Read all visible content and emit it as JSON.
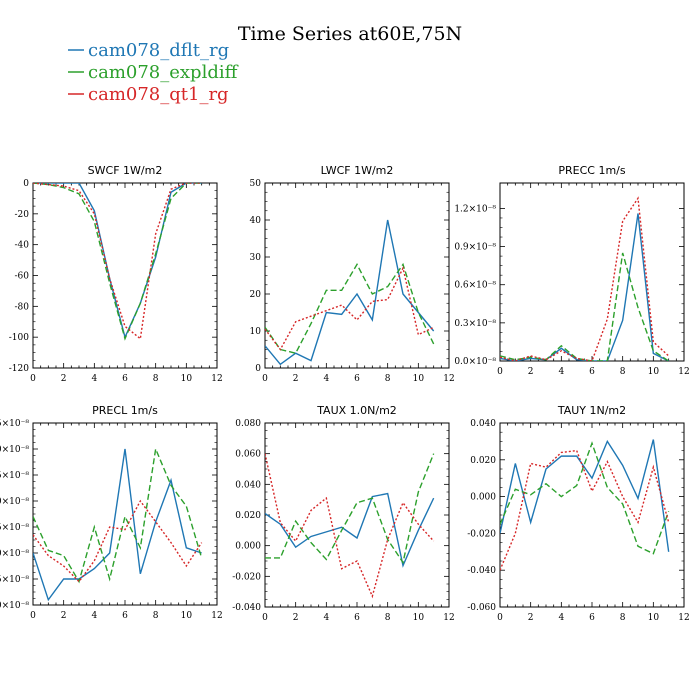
{
  "title": "Time Series at60E,75N",
  "legend": [
    {
      "name": "cam078_dflt_rg",
      "color": "#1f77b4",
      "dash": ""
    },
    {
      "name": "cam078_expldiff",
      "color": "#2ca02c",
      "dash": "6,3"
    },
    {
      "name": "cam078_qt1_rg",
      "color": "#d62728",
      "dash": "2,2"
    }
  ],
  "chart_data": [
    {
      "type": "line",
      "title": "SWCF   1W/m2",
      "xlim": [
        0,
        12
      ],
      "ylim": [
        -120,
        0
      ],
      "xticks": [
        0,
        2,
        4,
        6,
        8,
        10,
        12
      ],
      "yticks": [
        -120,
        -100,
        -80,
        -60,
        -40,
        -20,
        0
      ],
      "ytick_labels": [
        "-120",
        "-100",
        "-80",
        "-60",
        "-40",
        "-20",
        "0"
      ],
      "x": [
        0,
        1,
        2,
        3,
        4,
        5,
        6,
        7,
        8,
        9,
        10,
        11
      ],
      "series": [
        {
          "name": "cam078_dflt_rg",
          "values": [
            0,
            0,
            0,
            0,
            -18,
            -62,
            -100,
            -78,
            -48,
            -6,
            0,
            0
          ]
        },
        {
          "name": "cam078_expldiff",
          "values": [
            0,
            -1,
            -3,
            -7,
            -25,
            -65,
            -101,
            -78,
            -46,
            -10,
            0,
            0
          ]
        },
        {
          "name": "cam078_qt1_rg",
          "values": [
            0,
            -1,
            -2,
            -5,
            -20,
            -62,
            -93,
            -101,
            -33,
            -4,
            0,
            0
          ]
        }
      ]
    },
    {
      "type": "line",
      "title": "LWCF   1W/m2",
      "xlim": [
        0,
        12
      ],
      "ylim": [
        0,
        50
      ],
      "xticks": [
        0,
        2,
        4,
        6,
        8,
        10,
        12
      ],
      "yticks": [
        0,
        10,
        20,
        30,
        40,
        50
      ],
      "ytick_labels": [
        "0",
        "10",
        "20",
        "30",
        "40",
        "50"
      ],
      "x": [
        0,
        1,
        2,
        3,
        4,
        5,
        6,
        7,
        8,
        9,
        10,
        11
      ],
      "series": [
        {
          "name": "cam078_dflt_rg",
          "values": [
            6,
            1,
            4,
            2,
            15,
            14.5,
            20,
            13,
            40,
            20,
            15,
            10
          ]
        },
        {
          "name": "cam078_expldiff",
          "values": [
            11,
            5,
            4,
            12,
            21,
            21,
            28,
            20,
            22,
            28,
            15,
            6.5
          ]
        },
        {
          "name": "cam078_qt1_rg",
          "values": [
            10.5,
            5,
            12.5,
            14,
            15.5,
            17,
            13,
            18,
            18.5,
            27,
            9,
            11
          ]
        }
      ]
    },
    {
      "type": "line",
      "title": "PRECC   1m/s",
      "xlim": [
        0,
        12
      ],
      "ylim": [
        0,
        1.4
      ],
      "xticks": [
        0,
        2,
        4,
        6,
        8,
        10,
        12
      ],
      "yticks": [
        0,
        0.3,
        0.6,
        0.9,
        1.2
      ],
      "ytick_labels": [
        "0.0×10⁻⁸",
        "0.3×10⁻⁸",
        "0.6×10⁻⁸",
        "0.9×10⁻⁸",
        "1.2×10⁻⁸"
      ],
      "x": [
        0,
        1,
        2,
        3,
        4,
        5,
        6,
        7,
        8,
        9,
        10,
        11
      ],
      "series": [
        {
          "name": "cam078_dflt_rg",
          "values": [
            0.02,
            0,
            0.02,
            0.01,
            0.1,
            0.01,
            0,
            0,
            0.32,
            1.16,
            0.06,
            0
          ]
        },
        {
          "name": "cam078_expldiff",
          "values": [
            0.04,
            0.01,
            0.03,
            0.01,
            0.12,
            0.02,
            0,
            0,
            0.85,
            0.42,
            0.08,
            0
          ]
        },
        {
          "name": "cam078_qt1_rg",
          "values": [
            0.03,
            0,
            0.04,
            0.01,
            0.08,
            0.02,
            0,
            0.33,
            1.1,
            1.28,
            0.15,
            0.04
          ]
        }
      ]
    },
    {
      "type": "line",
      "title": "PRECL   1m/s",
      "xlim": [
        0,
        12
      ],
      "ylim": [
        0,
        3.5
      ],
      "xticks": [
        0,
        2,
        4,
        6,
        8,
        10,
        12
      ],
      "yticks": [
        0,
        0.5,
        1,
        1.5,
        2,
        2.5,
        3,
        3.5
      ],
      "ytick_labels": [
        ".0×10⁻⁸",
        ".5×10⁻⁸",
        ".0×10⁻⁸",
        ".5×10⁻⁸",
        ".0×10⁻⁸",
        ".5×10⁻⁸",
        ".0×10⁻⁸",
        ".5×10⁻⁸"
      ],
      "x": [
        0,
        1,
        2,
        3,
        4,
        5,
        6,
        7,
        8,
        9,
        10,
        11
      ],
      "series": [
        {
          "name": "cam078_dflt_rg",
          "values": [
            1.0,
            0.1,
            0.5,
            0.5,
            0.7,
            1.0,
            3.0,
            0.6,
            1.6,
            2.4,
            1.1,
            1.0
          ]
        },
        {
          "name": "cam078_expldiff",
          "values": [
            1.7,
            1.05,
            0.95,
            0.45,
            1.5,
            0.5,
            1.7,
            1.1,
            3.0,
            2.3,
            1.9,
            0.9
          ]
        },
        {
          "name": "cam078_qt1_rg",
          "values": [
            1.35,
            0.95,
            0.75,
            0.45,
            0.85,
            1.5,
            1.45,
            2.0,
            1.6,
            1.2,
            0.75,
            1.2
          ]
        }
      ]
    },
    {
      "type": "line",
      "title": "TAUX   1.0N/m2",
      "xlim": [
        0,
        12
      ],
      "ylim": [
        -0.04,
        0.08
      ],
      "xticks": [
        0,
        2,
        4,
        6,
        8,
        10,
        12
      ],
      "yticks": [
        -0.04,
        -0.02,
        0,
        0.02,
        0.04,
        0.06,
        0.08
      ],
      "ytick_labels": [
        "-0.040",
        "-0.020",
        "0.000",
        "0.020",
        "0.040",
        "0.060",
        "0.080"
      ],
      "x": [
        0,
        1,
        2,
        3,
        4,
        5,
        6,
        7,
        8,
        9,
        10,
        11
      ],
      "series": [
        {
          "name": "cam078_dflt_rg",
          "values": [
            0.021,
            0.014,
            -0.001,
            0.006,
            0.009,
            0.012,
            0.005,
            0.032,
            0.034,
            -0.013,
            0.01,
            0.031
          ]
        },
        {
          "name": "cam078_expldiff",
          "values": [
            -0.008,
            -0.008,
            0.016,
            0.002,
            -0.009,
            0.01,
            0.028,
            0.031,
            0.004,
            -0.011,
            0.035,
            0.06
          ]
        },
        {
          "name": "cam078_qt1_rg",
          "values": [
            0.06,
            0.015,
            0.003,
            0.023,
            0.031,
            -0.015,
            -0.01,
            -0.033,
            0.004,
            0.028,
            0.014,
            0.003
          ]
        }
      ]
    },
    {
      "type": "line",
      "title": "TAUY   1N/m2",
      "xlim": [
        0,
        12
      ],
      "ylim": [
        -0.06,
        0.04
      ],
      "xticks": [
        0,
        2,
        4,
        6,
        8,
        10,
        12
      ],
      "yticks": [
        -0.06,
        -0.04,
        -0.02,
        0,
        0.02,
        0.04
      ],
      "ytick_labels": [
        "-0.060",
        "-0.040",
        "-0.020",
        "0.000",
        "0.020",
        "0.040"
      ],
      "x": [
        0,
        1,
        2,
        3,
        4,
        5,
        6,
        7,
        8,
        9,
        10,
        11
      ],
      "series": [
        {
          "name": "cam078_dflt_rg",
          "values": [
            -0.02,
            0.018,
            -0.014,
            0.015,
            0.022,
            0.022,
            0.01,
            0.03,
            0.017,
            -0.001,
            0.031,
            -0.03
          ]
        },
        {
          "name": "cam078_expldiff",
          "values": [
            -0.015,
            0.004,
            0.001,
            0.007,
            0.0,
            0.006,
            0.029,
            0.005,
            -0.004,
            -0.027,
            -0.031,
            -0.008
          ]
        },
        {
          "name": "cam078_qt1_rg",
          "values": [
            -0.04,
            -0.02,
            0.018,
            0.016,
            0.024,
            0.025,
            0.003,
            0.019,
            0.0,
            -0.014,
            0.016,
            -0.014
          ]
        }
      ]
    }
  ]
}
